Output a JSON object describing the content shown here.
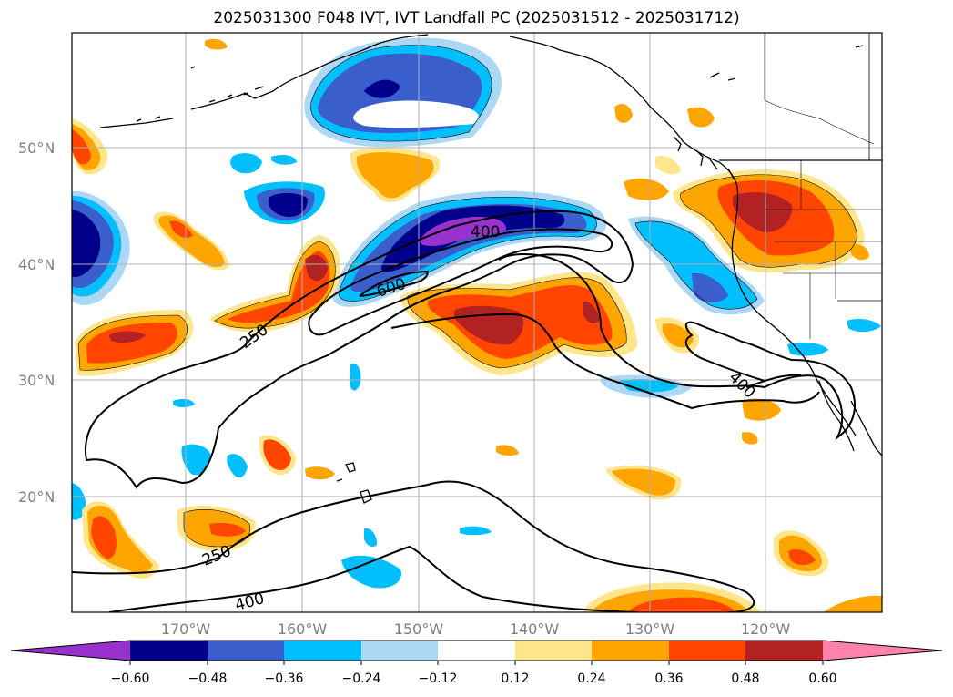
{
  "title": "2025031300 F048 IVT, IVT Landfall PC (2025031512 - 2025031712)",
  "map": {
    "lon_ticks": [
      "170°W",
      "160°W",
      "150°W",
      "140°W",
      "130°W",
      "120°W"
    ],
    "lat_ticks": [
      "50°N",
      "40°N",
      "30°N",
      "20°N"
    ],
    "contour_labels": [
      "400",
      "600",
      "250",
      "400",
      "250",
      "400"
    ]
  },
  "colorbar": {
    "tick_labels": [
      "−0.60",
      "−0.48",
      "−0.36",
      "−0.24",
      "−0.12",
      "0.12",
      "0.24",
      "0.36",
      "0.48",
      "0.60"
    ],
    "colors": [
      "#9932cc",
      "#00008b",
      "#3a5fcd",
      "#00bfff",
      "#add8f5",
      "#ffffff",
      "#ffe68c",
      "#ffa500",
      "#ff4500",
      "#b22222",
      "#ff82ab"
    ]
  },
  "fill_colors": {
    "neg_light": "#add8f5",
    "neg_mid": "#00bfff",
    "neg_strong": "#3a5fcd",
    "neg_vstrong": "#00008b",
    "neg_max": "#9932cc",
    "pos_light": "#ffe68c",
    "pos_mid": "#ffa500",
    "pos_strong": "#ff4500",
    "pos_vstrong": "#b22222"
  }
}
